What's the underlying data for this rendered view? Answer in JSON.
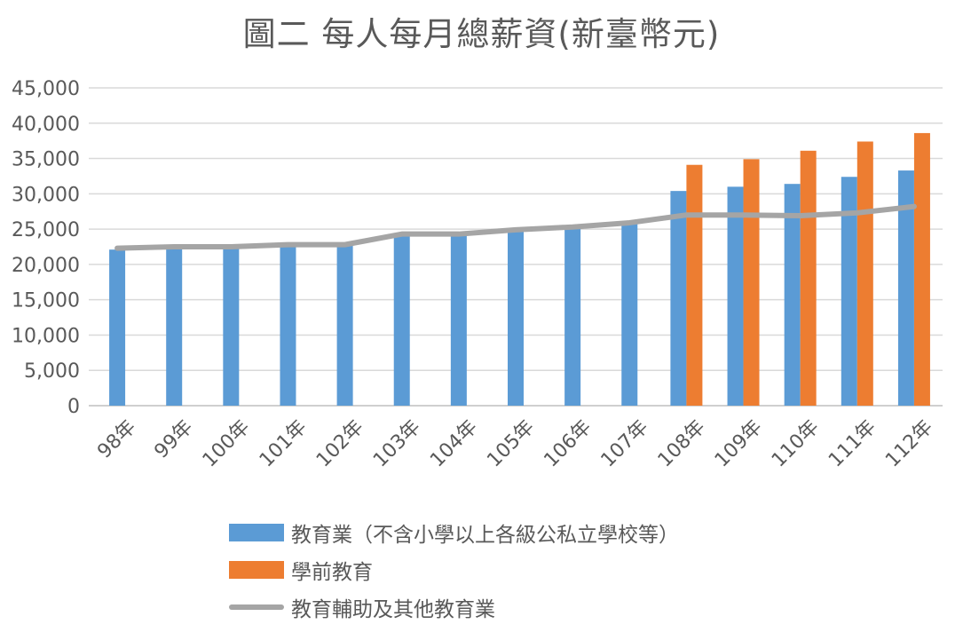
{
  "chart_data": {
    "type": "bar",
    "title": "圖二 每人每月總薪資(新臺幣元)",
    "categories": [
      "98年",
      "99年",
      "100年",
      "101年",
      "102年",
      "103年",
      "104年",
      "105年",
      "106年",
      "107年",
      "108年",
      "109年",
      "110年",
      "111年",
      "112年"
    ],
    "ylim": [
      0,
      45000
    ],
    "yticks": [
      0,
      5000,
      10000,
      15000,
      20000,
      25000,
      30000,
      35000,
      40000,
      45000
    ],
    "ytick_labels": [
      "0",
      "5,000",
      "10,000",
      "15,000",
      "20,000",
      "25,000",
      "30,000",
      "35,000",
      "40,000",
      "45,000"
    ],
    "grid": true,
    "legend_position": "bottom",
    "series": [
      {
        "name": "教育業（不含小學以上各級公私立學校等）",
        "type": "bar",
        "color": "#5B9BD5",
        "values": [
          22100,
          22300,
          22400,
          22700,
          22800,
          24000,
          24200,
          24800,
          25100,
          25800,
          30400,
          31000,
          31400,
          32400,
          33300
        ]
      },
      {
        "name": "學前教育",
        "type": "bar",
        "color": "#ED7D31",
        "values": [
          null,
          null,
          null,
          null,
          null,
          null,
          null,
          null,
          null,
          null,
          34100,
          34900,
          36100,
          37400,
          38600
        ]
      },
      {
        "name": "教育輔助及其他教育業",
        "type": "line",
        "color": "#A5A5A5",
        "values": [
          22300,
          22500,
          22500,
          22800,
          22800,
          24300,
          24300,
          24900,
          25300,
          25900,
          27000,
          27000,
          26900,
          27300,
          28200
        ]
      }
    ]
  }
}
